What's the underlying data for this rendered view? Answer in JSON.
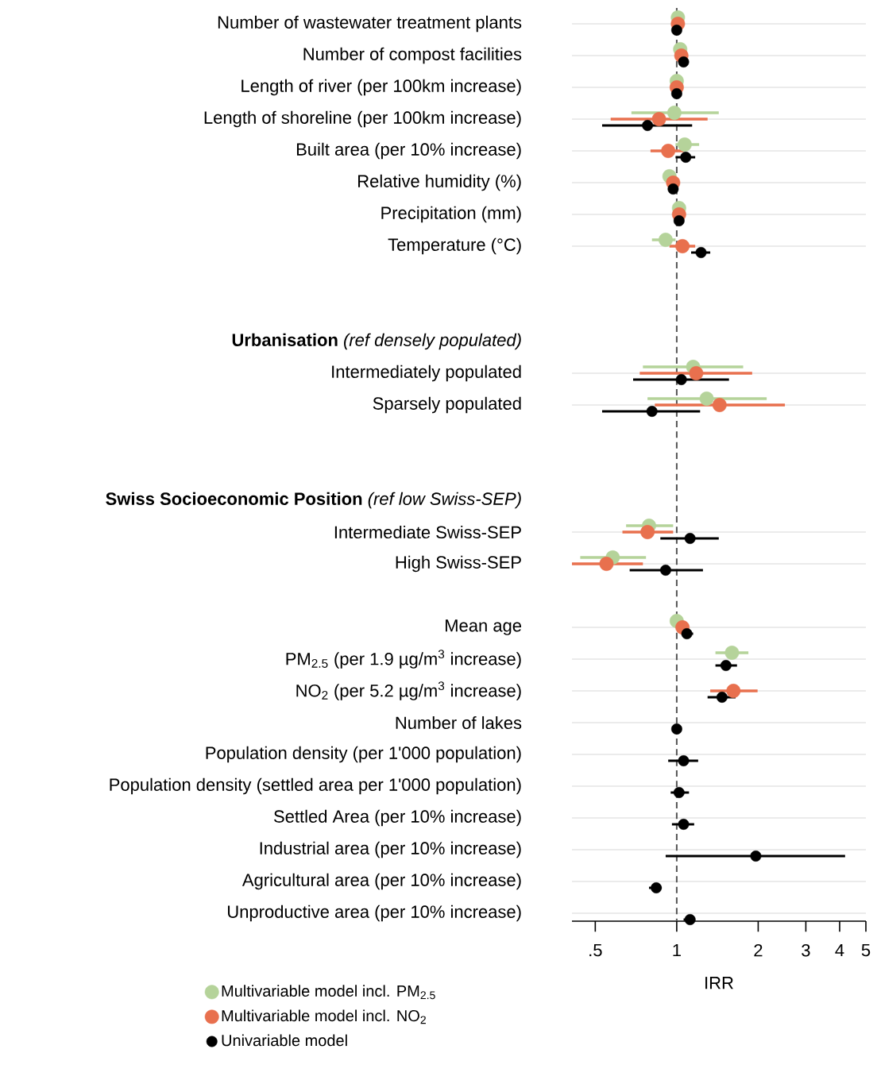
{
  "chart_data": {
    "type": "scatter",
    "orientation": "horizontal",
    "categories": [
      "Number of wastewater treatment plants",
      "Number of compost facilities",
      "Length of river (per 100km increase)",
      "Length of shoreline (per 100km increase)",
      "Built area (per 10% increase)",
      "Relative humidity (%)",
      "Precipitation (mm)",
      "Temperature (°C)",
      null,
      null,
      "**Urbanisation** *(ref densely populated)*",
      "Intermediately populated",
      "Sparsely populated",
      null,
      null,
      "**Swiss Socioeconomic Position** *(ref low Swiss-SEP)*",
      "Intermediate Swiss-SEP",
      "High Swiss-SEP",
      null,
      "Mean age",
      "PM$_{2.5}$ (per 1.9 µg/m$^{3}$ increase)",
      "NO$_{2}$ (per 5.2 µg/m$^{3}$ increase)",
      "Number of lakes",
      "Population density (per 1'000 population)",
      "Population density (settled area per 1'000 population)",
      "Settled Area (per 10% increase)",
      "Industrial area (per 10% increase)",
      "Agricultural area (per 10% increase)",
      "Unproductive area (per 10% increase)"
    ],
    "series": [
      {
        "name": "Multivariable model incl. PM$_{2.5}$",
        "color": "#b5d39a",
        "values": [
          1.01,
          1.03,
          1.0,
          0.98,
          1.07,
          0.94,
          1.02,
          0.91,
          null,
          null,
          null,
          1.15,
          1.29,
          null,
          null,
          null,
          0.79,
          0.58,
          null,
          1.0,
          1.6,
          null,
          null,
          null,
          null,
          null,
          null,
          null,
          null
        ],
        "errors": [
          null,
          null,
          null,
          [
            0.68,
            1.43
          ],
          [
            0.99,
            1.21
          ],
          null,
          null,
          [
            0.81,
            0.99
          ],
          null,
          null,
          null,
          [
            0.75,
            1.76
          ],
          [
            0.78,
            2.15
          ],
          null,
          null,
          null,
          [
            0.65,
            0.97
          ],
          [
            0.44,
            0.77
          ],
          null,
          null,
          [
            1.39,
            1.84
          ],
          null,
          null,
          null,
          null,
          null,
          null,
          null,
          null
        ]
      },
      {
        "name": "Multivariable model incl. NO$_{2}$",
        "color": "#e8704e",
        "values": [
          1.01,
          1.04,
          1.0,
          0.86,
          0.93,
          0.97,
          1.02,
          1.05,
          null,
          null,
          null,
          1.18,
          1.44,
          null,
          null,
          null,
          0.78,
          0.55,
          null,
          1.05,
          null,
          1.62,
          null,
          null,
          null,
          null,
          null,
          null,
          null
        ],
        "errors": [
          null,
          null,
          null,
          [
            0.57,
            1.3
          ],
          [
            0.8,
            1.06
          ],
          null,
          null,
          [
            0.94,
            1.17
          ],
          null,
          null,
          null,
          [
            0.73,
            1.9
          ],
          [
            0.83,
            2.51
          ],
          null,
          null,
          null,
          [
            0.63,
            0.97
          ],
          [
            0.41,
            0.75
          ],
          null,
          null,
          null,
          [
            1.33,
            1.99
          ],
          null,
          null,
          null,
          null,
          null,
          null,
          null
        ]
      },
      {
        "name": "Univariable model",
        "color": "#000000",
        "values": [
          1.0,
          1.06,
          1.0,
          0.78,
          1.08,
          0.97,
          1.02,
          1.23,
          null,
          null,
          null,
          1.04,
          0.81,
          null,
          null,
          null,
          1.12,
          0.91,
          null,
          1.09,
          1.52,
          1.47,
          1.0,
          1.06,
          1.02,
          1.06,
          1.96,
          0.84,
          1.12
        ],
        "errors": [
          null,
          null,
          null,
          [
            0.53,
            1.14
          ],
          [
            0.99,
            1.17
          ],
          null,
          null,
          [
            1.13,
            1.33
          ],
          null,
          null,
          null,
          [
            0.69,
            1.56
          ],
          [
            0.53,
            1.22
          ],
          null,
          null,
          null,
          [
            0.87,
            1.43
          ],
          [
            0.67,
            1.25
          ],
          null,
          [
            1.04,
            1.15
          ],
          [
            1.39,
            1.67
          ],
          [
            1.3,
            1.65
          ],
          null,
          [
            0.93,
            1.2
          ],
          [
            0.95,
            1.11
          ],
          [
            0.96,
            1.16
          ],
          [
            0.91,
            4.19
          ],
          [
            0.79,
            0.88
          ],
          [
            1.06,
            1.17
          ]
        ]
      }
    ],
    "xlabel": "IRR",
    "log": "x",
    "xlim": [
      0.41,
      5
    ],
    "xticks": [
      {
        "value": 0.5,
        "label": ".5"
      },
      1,
      2,
      3,
      4,
      5
    ],
    "ref_lines": [
      {
        "axis": "x",
        "value": 1,
        "color": "#555555",
        "line_style": "dashed"
      }
    ],
    "grid": "y",
    "legend": "bottom left"
  }
}
